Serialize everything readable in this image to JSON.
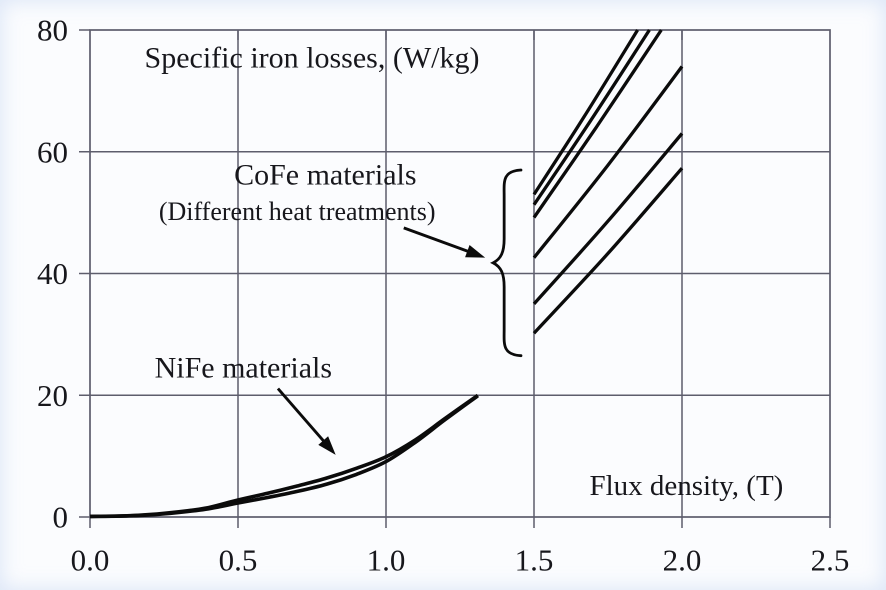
{
  "figure": {
    "background": "#fbfcfe",
    "text_color": "#17171c",
    "grid_color": "#5d5d6c",
    "curve_color": "#0b0b0b"
  },
  "chart_data": {
    "type": "line",
    "title": "Specific iron losses, (W/kg)",
    "xlabel": "Flux density, (T)",
    "ylabel": "Specific iron losses, (W/kg)",
    "xlim": [
      0,
      2.5
    ],
    "ylim": [
      0,
      80
    ],
    "grid": true,
    "legend_position": "none (in-plot annotations)",
    "x_ticks": [
      {
        "v": 0.0,
        "label": "0.0"
      },
      {
        "v": 0.5,
        "label": "0.5"
      },
      {
        "v": 1.0,
        "label": "1.0"
      },
      {
        "v": 1.5,
        "label": "1.5"
      },
      {
        "v": 2.0,
        "label": "2.0"
      },
      {
        "v": 2.5,
        "label": "2.5"
      }
    ],
    "y_ticks": [
      {
        "v": 0,
        "label": "0"
      },
      {
        "v": 20,
        "label": "20"
      },
      {
        "v": 40,
        "label": "40"
      },
      {
        "v": 60,
        "label": "60"
      },
      {
        "v": 80,
        "label": "80"
      }
    ],
    "series": [
      {
        "name": "NiFe material 1",
        "group": "NiFe",
        "points": [
          [
            0,
            0.1
          ],
          [
            0.1,
            0.15
          ],
          [
            0.2,
            0.4
          ],
          [
            0.3,
            0.85
          ],
          [
            0.4,
            1.55
          ],
          [
            0.5,
            2.8
          ],
          [
            0.6,
            3.9
          ],
          [
            0.7,
            5.1
          ],
          [
            0.8,
            6.4
          ],
          [
            0.9,
            8.0
          ],
          [
            1.0,
            9.9
          ],
          [
            1.1,
            12.7
          ],
          [
            1.2,
            16.2
          ],
          [
            1.31,
            20
          ]
        ]
      },
      {
        "name": "NiFe material 2",
        "group": "NiFe",
        "points": [
          [
            0,
            0.1
          ],
          [
            0.1,
            0.15
          ],
          [
            0.2,
            0.35
          ],
          [
            0.3,
            0.75
          ],
          [
            0.4,
            1.35
          ],
          [
            0.5,
            2.3
          ],
          [
            0.6,
            3.2
          ],
          [
            0.7,
            4.2
          ],
          [
            0.8,
            5.4
          ],
          [
            0.9,
            7.0
          ],
          [
            1.0,
            9.1
          ],
          [
            1.1,
            12.3
          ],
          [
            1.2,
            16.0
          ],
          [
            1.31,
            19.9
          ]
        ]
      },
      {
        "name": "CoFe heat treatment 1",
        "group": "CoFe",
        "points": [
          [
            1.5,
            53.0
          ],
          [
            1.67,
            65.8
          ],
          [
            1.85,
            80
          ]
        ]
      },
      {
        "name": "CoFe heat treatment 2",
        "group": "CoFe",
        "points": [
          [
            1.5,
            51.3
          ],
          [
            1.69,
            65.0
          ],
          [
            1.89,
            80
          ]
        ]
      },
      {
        "name": "CoFe heat treatment 3",
        "group": "CoFe",
        "points": [
          [
            1.5,
            49.2
          ],
          [
            1.71,
            64.0
          ],
          [
            1.93,
            80
          ]
        ]
      },
      {
        "name": "CoFe heat treatment 4",
        "group": "CoFe",
        "points": [
          [
            1.5,
            42.6
          ],
          [
            1.75,
            57.8
          ],
          [
            2.0,
            74.0
          ]
        ]
      },
      {
        "name": "CoFe heat treatment 5",
        "group": "CoFe",
        "points": [
          [
            1.5,
            35.0
          ],
          [
            1.75,
            48.6
          ],
          [
            2.0,
            63.0
          ]
        ]
      },
      {
        "name": "CoFe heat treatment 6",
        "group": "CoFe",
        "points": [
          [
            1.5,
            30.2
          ],
          [
            1.75,
            43.3
          ],
          [
            2.0,
            57.3
          ]
        ]
      }
    ],
    "annotations": {
      "title": {
        "text": "Specific iron losses, (W/kg)",
        "x": 0.75,
        "y": 75.4
      },
      "cofe_line1": {
        "text": "CoFe materials",
        "x": 0.795,
        "y": 56.2
      },
      "cofe_line2": {
        "text": "(Different heat treatments)",
        "x": 0.7,
        "y": 50.2
      },
      "nife": {
        "text": "NiFe materials",
        "x": 0.518,
        "y": 24.5
      },
      "xlabel": {
        "text": "Flux density, (T)",
        "x": 2.015,
        "y": 5.1
      }
    },
    "arrows": [
      {
        "name": "cofe-arrow",
        "from": [
          1.06,
          47.5
        ],
        "to": [
          1.335,
          42.6
        ]
      },
      {
        "name": "nife-arrow",
        "from": [
          0.635,
          21.1
        ],
        "to": [
          0.83,
          10.2
        ]
      }
    ],
    "brace": {
      "back_x": 1.456,
      "tip_x": 1.362,
      "y_top": 57.0,
      "y_bottom": 26.5
    }
  }
}
